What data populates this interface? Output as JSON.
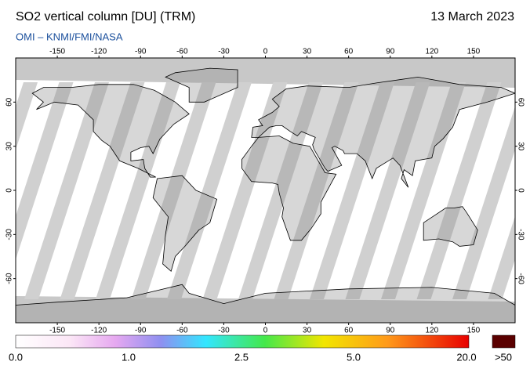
{
  "header": {
    "title": "SO2 vertical column [DU] (TRM)",
    "source": "OMI  –  KNMI/FMI/NASA",
    "date": "13 March 2023"
  },
  "map": {
    "xlim": [
      -180,
      180
    ],
    "ylim": [
      -90,
      90
    ],
    "xticks": [
      -150,
      -120,
      -90,
      -60,
      -30,
      0,
      30,
      60,
      90,
      120,
      150
    ],
    "yticks": [
      60,
      30,
      0,
      -30,
      -60
    ]
  },
  "colorbar": {
    "labels": [
      "0.0",
      "1.0",
      "2.5",
      "5.0",
      "20.0"
    ],
    "overflow": ">50"
  }
}
